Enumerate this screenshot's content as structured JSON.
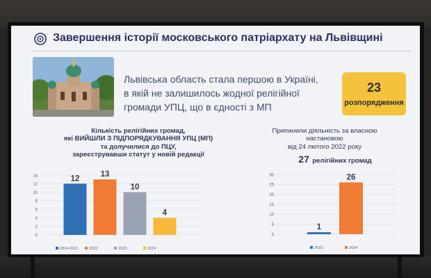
{
  "slide": {
    "title": "Завершення історії московського патріархату на Львівщині",
    "statement_lines": [
      "Львівська область стала першою в Україні,",
      "в якій не залишилось жодної релігійної",
      "громади УПЦ, що в єдності з МП"
    ],
    "badge": {
      "number": "23",
      "label": "розпорядження"
    }
  },
  "chart1_title_lines": [
    "Кількість релігійних громад,",
    "які ВИЙШЛИ З ПІДПОРЯДКУВАННЯ УПЦ (МП)",
    "та долучилися до ПЦУ,",
    "зареєструвавши статут у новій редакції"
  ],
  "chart2_title_lines": [
    "Припинили діяльність за власною",
    "настановою",
    "від 24 лютого 2022 року"
  ],
  "chart2_count": {
    "number": "27",
    "label": "релігійних громад"
  },
  "colors": {
    "blue": "#2f6fb6",
    "orange": "#ef7b34",
    "gray": "#9aa3b3",
    "yellow": "#f6b93b",
    "badge": "#f5c33b",
    "title": "#2b2f5c"
  },
  "chart_data": [
    {
      "type": "bar",
      "categories": [
        "2014-2021",
        "2022",
        "2023",
        "2024"
      ],
      "values": [
        12,
        13,
        10,
        4
      ],
      "ylim": [
        0,
        14
      ],
      "yticks": [
        0,
        2,
        4,
        6,
        8,
        10,
        12,
        14
      ],
      "grid": true,
      "legend": "bottom",
      "series_colors": [
        "#2f6fb6",
        "#ef7b34",
        "#9aa3b3",
        "#f6b93b"
      ]
    },
    {
      "type": "bar",
      "categories": [
        "2023",
        "2024"
      ],
      "values": [
        1,
        26
      ],
      "ylim": [
        0,
        30
      ],
      "yticks": [
        0,
        5,
        10,
        15,
        20,
        25,
        30
      ],
      "grid": true,
      "legend": "bottom",
      "series_colors": [
        "#2f6fb6",
        "#ef7b34"
      ]
    }
  ]
}
